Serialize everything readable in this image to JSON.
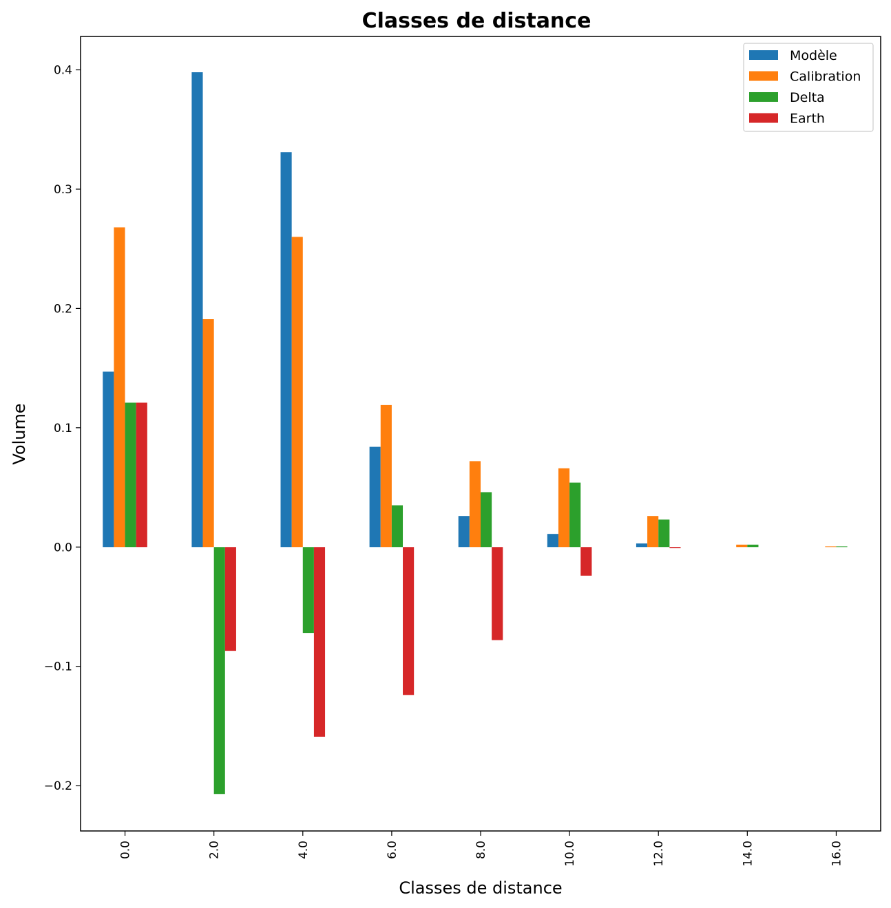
{
  "chart_data": {
    "type": "bar",
    "title": "Classes de distance",
    "xlabel": "Classes de distance",
    "ylabel": "Volume",
    "categories": [
      "0.0",
      "2.0",
      "4.0",
      "6.0",
      "8.0",
      "10.0",
      "12.0",
      "14.0",
      "16.0"
    ],
    "series": [
      {
        "name": "Modèle",
        "color": "#1f77b4",
        "values": [
          0.147,
          0.398,
          0.331,
          0.084,
          0.026,
          0.011,
          0.003,
          0.0,
          0.0
        ]
      },
      {
        "name": "Calibration",
        "color": "#ff7f0e",
        "values": [
          0.268,
          0.191,
          0.26,
          0.119,
          0.072,
          0.066,
          0.026,
          0.002,
          0.0005
        ]
      },
      {
        "name": "Delta",
        "color": "#2ca02c",
        "values": [
          0.121,
          -0.207,
          -0.072,
          0.035,
          0.046,
          0.054,
          0.023,
          0.002,
          0.0005
        ]
      },
      {
        "name": "Earth",
        "color": "#d62728",
        "values": [
          0.121,
          -0.087,
          -0.159,
          -0.124,
          -0.078,
          -0.024,
          -0.001,
          0.0,
          0.0
        ]
      }
    ],
    "yticks": [
      "−0.2",
      "−0.1",
      "0.0",
      "0.1",
      "0.2",
      "0.3",
      "0.4"
    ],
    "ylim": [
      -0.238,
      0.428
    ],
    "grid": false,
    "legend_position": "top-right"
  }
}
